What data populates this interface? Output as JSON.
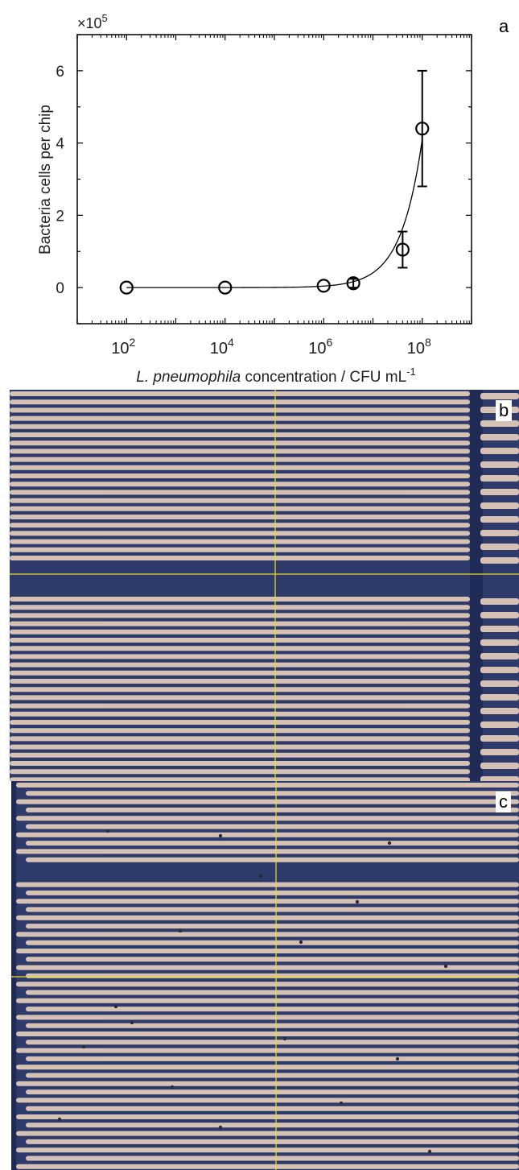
{
  "panels": {
    "a_label": "a",
    "b_label": "b",
    "c_label": "c"
  },
  "chart_data": {
    "type": "scatter",
    "ylabel": "Bacteria cells per chip",
    "xlabel_italic": "L. pneumophila",
    "xlabel_rest": " concentration / CFU mL",
    "xlabel_sup": "-1",
    "y_multiplier_base": "×10",
    "y_multiplier_exp": "5",
    "x_scale": "log",
    "x_range": [
      10,
      1000000000
    ],
    "y_range": [
      -1,
      7
    ],
    "x_ticks": [
      {
        "base": "10",
        "exp": "2",
        "value": 100
      },
      {
        "base": "10",
        "exp": "4",
        "value": 10000
      },
      {
        "base": "10",
        "exp": "6",
        "value": 1000000
      },
      {
        "base": "10",
        "exp": "8",
        "value": 100000000
      }
    ],
    "y_ticks": [
      {
        "label": "0",
        "value": 0
      },
      {
        "label": "2",
        "value": 2
      },
      {
        "label": "4",
        "value": 4
      },
      {
        "label": "6",
        "value": 6
      }
    ],
    "points": [
      {
        "x": 100,
        "y": 0.0,
        "err": 0
      },
      {
        "x": 10000,
        "y": 0.0,
        "err": 0
      },
      {
        "x": 1000000,
        "y": 0.05,
        "err": 0
      },
      {
        "x": 4000000,
        "y": 0.12,
        "err": 0.12
      },
      {
        "x": 40000000,
        "y": 1.05,
        "err": 0.5
      },
      {
        "x": 100000000,
        "y": 4.4,
        "err": 1.6
      }
    ],
    "fit_curve": {
      "type": "linear",
      "slope_per_cfu": 4.1e-08,
      "offset": 0.0
    },
    "grid": false,
    "box": true
  },
  "colors": {
    "micro_bg": "#2e3a6a",
    "micro_stripe": "#d6c2b4",
    "micro_dark": "#1f2a55",
    "crosshair": "#e8e020"
  }
}
